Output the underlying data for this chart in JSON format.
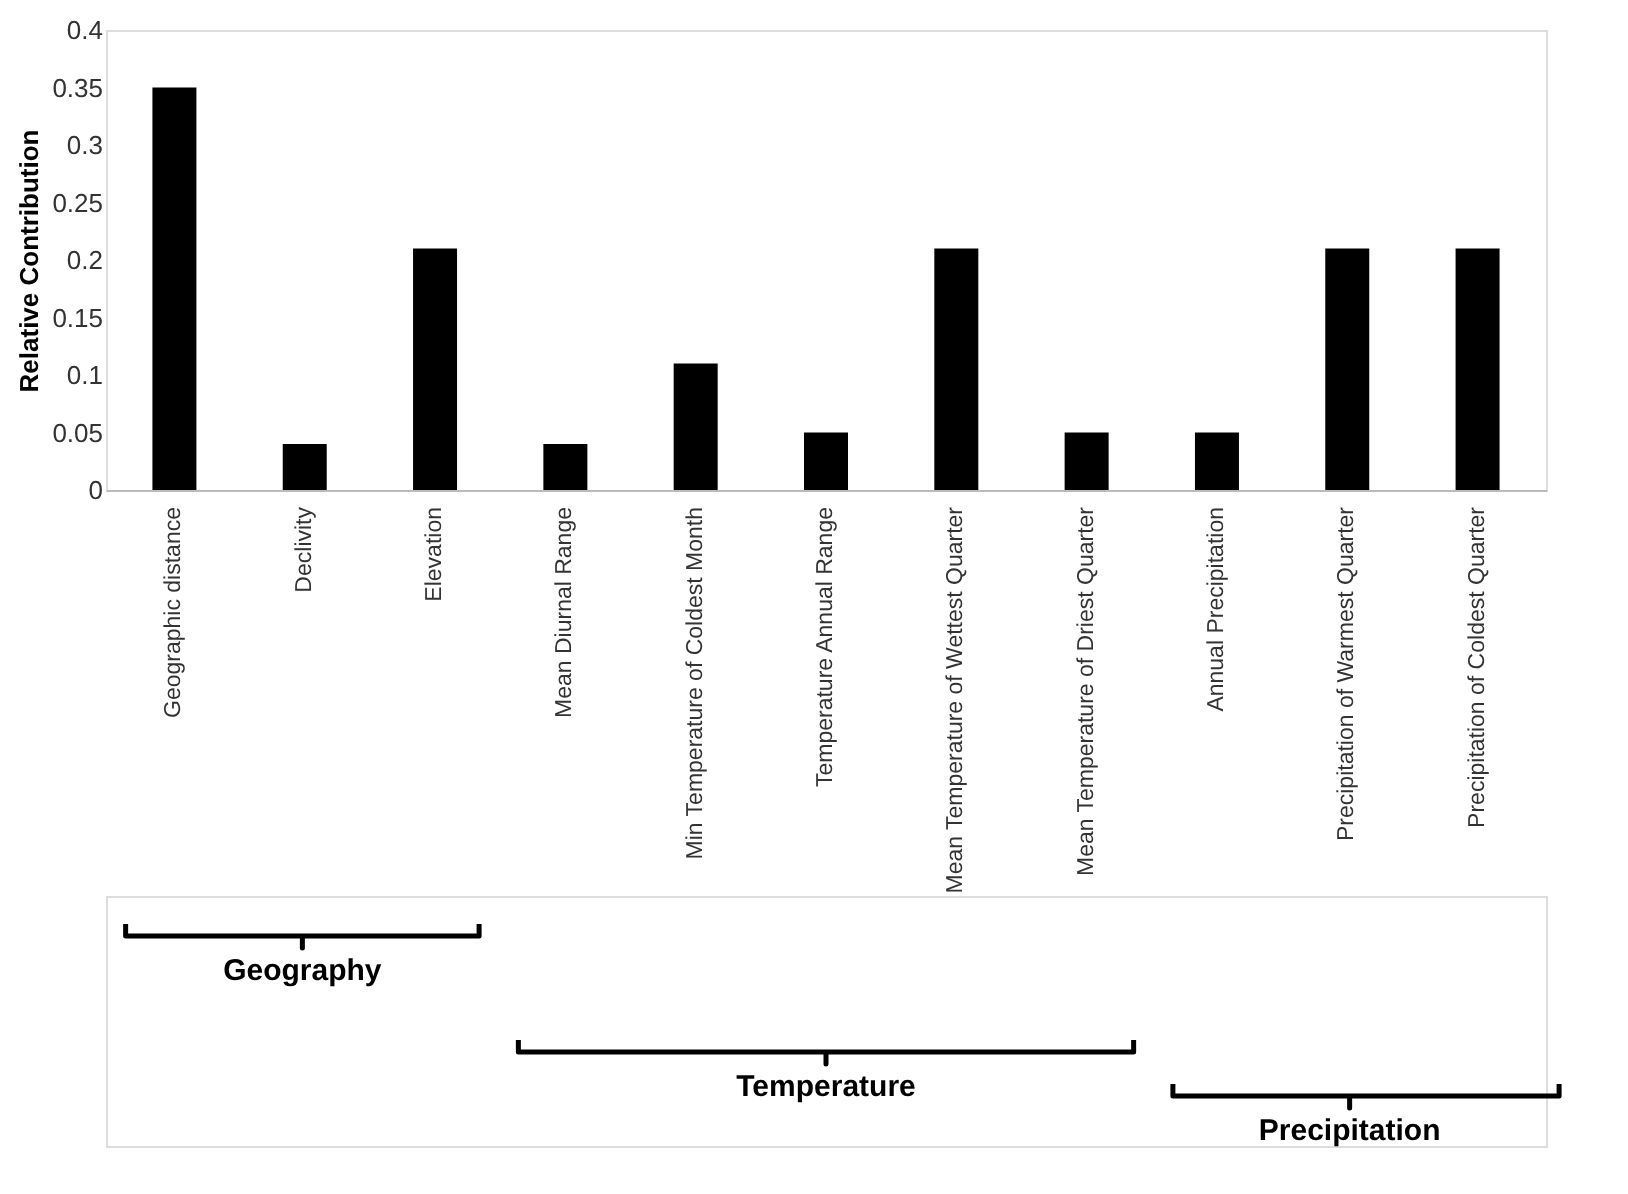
{
  "chart_data": {
    "type": "bar",
    "ylabel": "Relative Contribution",
    "categories": [
      "Geographic distance",
      "Declivity",
      "Elevation",
      "Mean Diurnal Range",
      "Min Temperature of Coldest Month",
      "Temperature Annual Range",
      "Mean Temperature of Wettest Quarter",
      "Mean Temperature of Driest Quarter",
      "Annual Precipitation",
      "Precipitation of Warmest Quarter",
      "Precipitation of Coldest Quarter"
    ],
    "values": [
      0.35,
      0.04,
      0.21,
      0.04,
      0.11,
      0.05,
      0.21,
      0.05,
      0.05,
      0.21,
      0.21
    ],
    "color": "#000000",
    "ylim": [
      0,
      0.4
    ],
    "yticks": [
      0,
      0.05,
      0.1,
      0.15,
      0.2,
      0.25,
      0.3,
      0.35,
      0.4
    ],
    "grid": false,
    "annotations": [
      "Geography",
      "Temperature",
      "Precipitation"
    ]
  }
}
